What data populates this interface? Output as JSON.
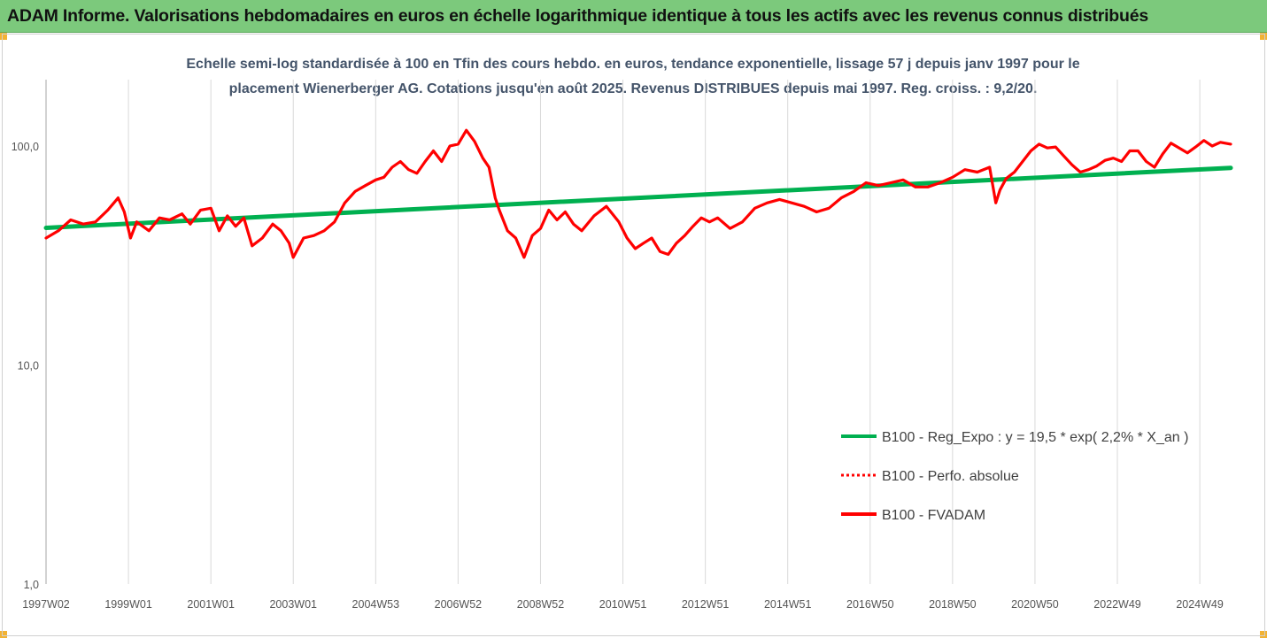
{
  "banner": {
    "title": "ADAM Informe. Valorisations hebdomadaires en euros en échelle logarithmique identique à tous les actifs avec les revenus connus distribués",
    "background": "#7cc97c"
  },
  "chart_data": {
    "type": "line",
    "title_line1": "Echelle semi-log standardisée à 100 en Tfin des cours hebdo. en euros, tendance exponentielle, lissage 57 j depuis janv 1997 pour le",
    "title_line2": "placement Wienerberger AG. Cotations jusqu'en août 2025. Revenus DISTRIBUES depuis mai 1997. Reg. croiss. : 9,2/20.",
    "y_scale": "log",
    "ylim": [
      1,
      175
    ],
    "y_ticks": [
      {
        "value": 1,
        "label": "1,0"
      },
      {
        "value": 10,
        "label": "10,0"
      },
      {
        "value": 100,
        "label": "100,0"
      }
    ],
    "xlim": [
      1997.0,
      2025.75
    ],
    "x_ticks": [
      {
        "value": 1997.0,
        "label": "1997W02"
      },
      {
        "value": 1999.0,
        "label": "1999W01"
      },
      {
        "value": 2001.0,
        "label": "2001W01"
      },
      {
        "value": 2003.0,
        "label": "2003W01"
      },
      {
        "value": 2005.0,
        "label": "2004W53"
      },
      {
        "value": 2007.0,
        "label": "2006W52"
      },
      {
        "value": 2009.0,
        "label": "2008W52"
      },
      {
        "value": 2011.0,
        "label": "2010W51"
      },
      {
        "value": 2013.0,
        "label": "2012W51"
      },
      {
        "value": 2015.0,
        "label": "2014W51"
      },
      {
        "value": 2017.0,
        "label": "2016W50"
      },
      {
        "value": 2019.0,
        "label": "2018W50"
      },
      {
        "value": 2021.0,
        "label": "2020W50"
      },
      {
        "value": 2023.0,
        "label": "2022W49"
      },
      {
        "value": 2025.0,
        "label": "2024W49"
      }
    ],
    "grid": "vertical",
    "legend_position": "bottom-right",
    "series": [
      {
        "name": "B100 - Reg_Expo : y = 19,5 * exp( 2,2% *  X_an )",
        "color": "#00b050",
        "style": "solid",
        "x": [
          1997.0,
          2025.75
        ],
        "y": [
          42.3,
          79.5
        ]
      },
      {
        "name": "B100 - Perfo. absolue",
        "color": "#ff0000",
        "style": "dotted",
        "x": [],
        "y": []
      },
      {
        "name": "B100 - FVADAM",
        "color": "#ff0000",
        "style": "solid",
        "x": [
          1997.0,
          1997.3,
          1997.6,
          1997.9,
          1998.2,
          1998.5,
          1998.75,
          1998.9,
          1999.05,
          1999.2,
          1999.5,
          1999.75,
          2000.0,
          2000.3,
          2000.5,
          2000.75,
          2001.0,
          2001.2,
          2001.4,
          2001.6,
          2001.8,
          2002.0,
          2002.25,
          2002.5,
          2002.7,
          2002.9,
          2003.0,
          2003.25,
          2003.5,
          2003.75,
          2004.0,
          2004.25,
          2004.5,
          2004.75,
          2005.0,
          2005.2,
          2005.4,
          2005.6,
          2005.8,
          2006.0,
          2006.2,
          2006.4,
          2006.6,
          2006.8,
          2007.0,
          2007.2,
          2007.4,
          2007.6,
          2007.75,
          2007.9,
          2008.0,
          2008.2,
          2008.4,
          2008.6,
          2008.8,
          2009.0,
          2009.2,
          2009.4,
          2009.6,
          2009.8,
          2010.0,
          2010.3,
          2010.6,
          2010.9,
          2011.1,
          2011.3,
          2011.5,
          2011.7,
          2011.9,
          2012.1,
          2012.3,
          2012.5,
          2012.7,
          2012.9,
          2013.1,
          2013.3,
          2013.6,
          2013.9,
          2014.2,
          2014.5,
          2014.8,
          2015.1,
          2015.4,
          2015.7,
          2016.0,
          2016.3,
          2016.6,
          2016.9,
          2017.2,
          2017.5,
          2017.8,
          2018.1,
          2018.4,
          2018.7,
          2019.0,
          2019.3,
          2019.6,
          2019.9,
          2020.05,
          2020.15,
          2020.3,
          2020.5,
          2020.7,
          2020.9,
          2021.1,
          2021.3,
          2021.5,
          2021.7,
          2021.9,
          2022.1,
          2022.3,
          2022.5,
          2022.7,
          2022.9,
          2023.1,
          2023.3,
          2023.5,
          2023.7,
          2023.9,
          2024.1,
          2024.3,
          2024.5,
          2024.7,
          2024.9,
          2025.1,
          2025.3,
          2025.5,
          2025.75
        ],
        "y": [
          38,
          41,
          46,
          44,
          45,
          51,
          58,
          50,
          38,
          45,
          41,
          47,
          46,
          49,
          44,
          51,
          52,
          41,
          48,
          43,
          47,
          35,
          38,
          44,
          41,
          36,
          31,
          38,
          39,
          41,
          45,
          55,
          62,
          66,
          70,
          72,
          80,
          85,
          78,
          75,
          85,
          95,
          85,
          100,
          102,
          118,
          105,
          88,
          80,
          58,
          51,
          41,
          38,
          31,
          39,
          42,
          51,
          46,
          50,
          44,
          41,
          48,
          53,
          45,
          38,
          34,
          36,
          38,
          33,
          32,
          36,
          39,
          43,
          47,
          45,
          47,
          42,
          45,
          52,
          55,
          57,
          55,
          53,
          50,
          52,
          58,
          62,
          68,
          66,
          68,
          70,
          65,
          65,
          68,
          72,
          78,
          76,
          80,
          55,
          63,
          71,
          76,
          85,
          95,
          102,
          98,
          99,
          90,
          82,
          76,
          78,
          81,
          86,
          88,
          85,
          95,
          95,
          85,
          80,
          92,
          103,
          98,
          93,
          99,
          106,
          100,
          104,
          102
        ]
      }
    ]
  }
}
